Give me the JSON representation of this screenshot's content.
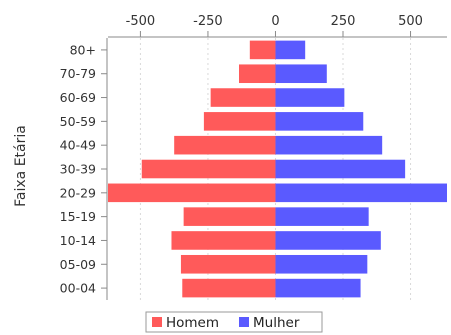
{
  "chart_data": {
    "type": "bar",
    "orientation": "horizontal",
    "layout": "population-pyramid",
    "categories": [
      "80+",
      "70-79",
      "60-69",
      "50-59",
      "40-49",
      "30-39",
      "20-29",
      "15-19",
      "10-14",
      "05-09",
      "00-04"
    ],
    "series": [
      {
        "name": "Homem",
        "color": "#ff5a5a",
        "values": [
          -95,
          -135,
          -240,
          -265,
          -375,
          -495,
          -620,
          -340,
          -385,
          -350,
          -345
        ]
      },
      {
        "name": "Mulher",
        "color": "#5a5aff",
        "values": [
          110,
          190,
          255,
          325,
          395,
          480,
          635,
          345,
          390,
          340,
          315
        ]
      }
    ],
    "xticks": [
      -500,
      -250,
      0,
      250,
      500
    ],
    "xtick_labels": [
      "-500",
      "-250",
      "0",
      "250",
      "500"
    ],
    "xlim": [
      -620,
      635
    ],
    "xaxis_position": "top",
    "ylabel": "Faixa Etária",
    "xlabel": "",
    "title": "",
    "grid": true,
    "legend_position": "bottom"
  }
}
